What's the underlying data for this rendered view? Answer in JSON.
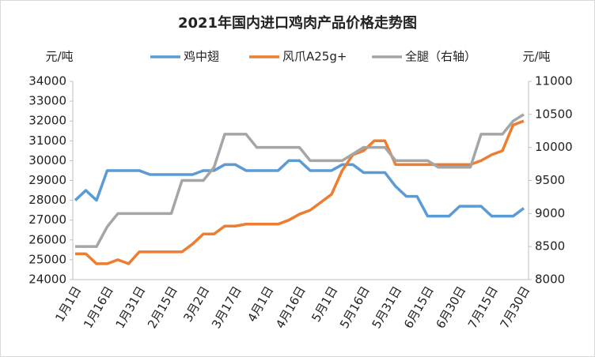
{
  "chart_data": {
    "type": "line",
    "title": "2021年国内进口鸡肉产品价格走势图",
    "y_label": "元/吨",
    "y2_label": "元/吨",
    "categories": [
      "1月1日",
      null,
      null,
      "1月16日",
      null,
      null,
      "1月31日",
      null,
      null,
      "2月15日",
      null,
      null,
      "3月2日",
      null,
      null,
      "3月17日",
      null,
      null,
      "4月1日",
      null,
      null,
      "4月16日",
      null,
      null,
      "5月1日",
      null,
      null,
      "5月16日",
      null,
      null,
      "5月31日",
      null,
      null,
      "6月15日",
      null,
      null,
      "6月30日",
      null,
      null,
      "7月15日",
      null,
      null,
      "7月30日"
    ],
    "series": [
      {
        "name": "鸡中翅",
        "color": "#5b9bd5",
        "values": [
          28000,
          28500,
          28000,
          29500,
          29500,
          29500,
          29500,
          29300,
          29300,
          29300,
          29300,
          29300,
          29500,
          29500,
          29800,
          29800,
          29500,
          29500,
          29500,
          29500,
          30000,
          30000,
          29500,
          29500,
          29500,
          29800,
          29800,
          29400,
          29400,
          29400,
          28700,
          28200,
          28200,
          27200,
          27200,
          27200,
          27700,
          27700,
          27700,
          27200,
          27200,
          27200,
          27600
        ]
      },
      {
        "name": "风爪A25g+",
        "color": "#ed7d31",
        "values": [
          25300,
          25300,
          24800,
          24800,
          25000,
          24800,
          25400,
          25400,
          25400,
          25400,
          25400,
          25800,
          26300,
          26300,
          26700,
          26700,
          26800,
          26800,
          26800,
          26800,
          27000,
          27300,
          27500,
          27900,
          28300,
          29500,
          30300,
          30500,
          31000,
          31000,
          29800,
          29800,
          29800,
          29800,
          29800,
          29800,
          29800,
          29800,
          30000,
          30300,
          30500,
          31800,
          32000
        ]
      },
      {
        "name": "全腿（右轴）",
        "color": "#a5a5a5",
        "axis": "y2",
        "values": [
          8500,
          8500,
          8500,
          8800,
          9000,
          9000,
          9000,
          9000,
          9000,
          9000,
          9500,
          9500,
          9500,
          9700,
          10200,
          10200,
          10200,
          10000,
          10000,
          10000,
          10000,
          10000,
          9800,
          9800,
          9800,
          9800,
          9900,
          10000,
          10000,
          10000,
          9800,
          9800,
          9800,
          9800,
          9700,
          9700,
          9700,
          9700,
          10200,
          10200,
          10200,
          10400,
          10500
        ]
      }
    ],
    "ylim": [
      24000,
      34000
    ],
    "yticks": [
      24000,
      25000,
      26000,
      27000,
      28000,
      29000,
      30000,
      31000,
      32000,
      33000,
      34000
    ],
    "y2lim": [
      8000,
      11000
    ],
    "y2ticks": [
      8000,
      8500,
      9000,
      9500,
      10000,
      10500,
      11000
    ]
  }
}
